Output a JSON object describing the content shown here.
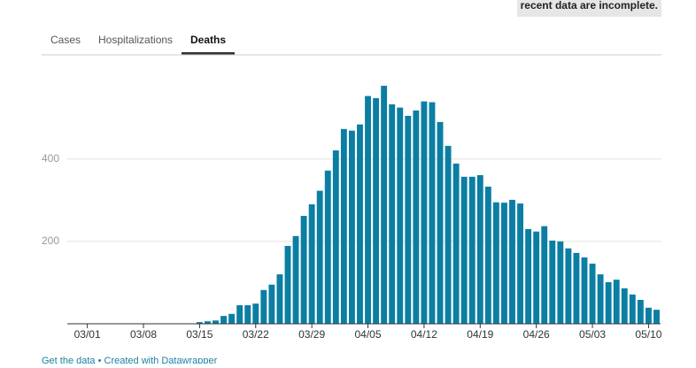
{
  "note": "recent data are incomplete.",
  "tabs": [
    "Cases",
    "Hospitalizations",
    "Deaths"
  ],
  "active_tab": 2,
  "footer": [
    "Get the data",
    "Created with Datawrapper"
  ],
  "chart_data": {
    "type": "bar",
    "color": "#0b7ea3",
    "categories": [
      null,
      null,
      "03/01",
      null,
      null,
      null,
      null,
      null,
      null,
      "03/08",
      null,
      null,
      null,
      null,
      null,
      null,
      "03/15",
      null,
      null,
      null,
      null,
      null,
      null,
      "03/22",
      null,
      null,
      null,
      null,
      null,
      null,
      "03/29",
      null,
      null,
      null,
      null,
      null,
      null,
      "04/05",
      null,
      null,
      null,
      null,
      null,
      null,
      "04/12",
      null,
      null,
      null,
      null,
      null,
      null,
      "04/19",
      null,
      null,
      null,
      null,
      null,
      null,
      "04/26",
      null,
      null,
      null,
      null,
      null,
      null,
      "05/03",
      null,
      null,
      null,
      null,
      null,
      null,
      "05/10",
      null
    ],
    "values": [
      0,
      0,
      0,
      0,
      0,
      0,
      0,
      0,
      0,
      0,
      0,
      0,
      0,
      0,
      0,
      0,
      4,
      6,
      8,
      19,
      24,
      45,
      45,
      49,
      82,
      95,
      120,
      189,
      213,
      262,
      290,
      323,
      372,
      421,
      473,
      469,
      484,
      553,
      548,
      578,
      533,
      525,
      505,
      518,
      540,
      538,
      490,
      432,
      389,
      357,
      357,
      361,
      333,
      295,
      294,
      301,
      292,
      230,
      224,
      237,
      202,
      200,
      183,
      172,
      161,
      146,
      120,
      101,
      107,
      86,
      71,
      58,
      39,
      34
    ],
    "ylim": [
      0,
      580
    ],
    "yticks": [
      200,
      400
    ],
    "grid": true
  }
}
